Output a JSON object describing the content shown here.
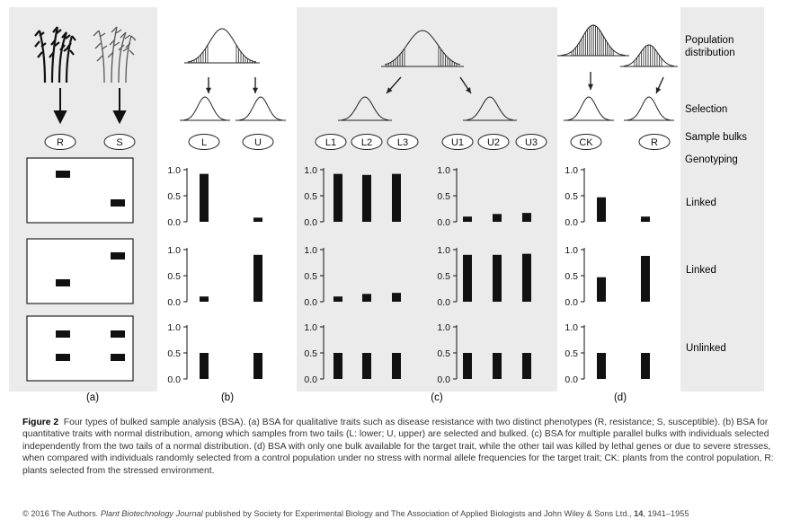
{
  "figure": {
    "panel_letters": [
      "(a)",
      "(b)",
      "(c)",
      "(d)"
    ],
    "right_labels": {
      "population": "Population",
      "distribution": "distribution",
      "selection": "Selection",
      "sample_bulks": "Sample bulks",
      "genotyping": "Genotyping"
    },
    "row_labels": [
      "Linked",
      "Linked",
      "Unlinked"
    ],
    "bulk_labels": {
      "a": [
        "R",
        "S"
      ],
      "b": [
        "L",
        "U"
      ],
      "c_low": [
        "L1",
        "L2",
        "L3"
      ],
      "c_up": [
        "U1",
        "U2",
        "U3"
      ],
      "d": [
        "CK",
        "R"
      ]
    },
    "y_ticks": [
      "1.0",
      "0.5",
      "0.0"
    ]
  },
  "chart_data": {
    "type": "bar",
    "description": "Allele frequency per bulk; rows = linked, linked, unlinked marker",
    "ylim": [
      0,
      1
    ],
    "panels": [
      {
        "panel": "b",
        "categories": [
          "L",
          "U"
        ],
        "rows": [
          [
            0.92,
            0.08
          ],
          [
            0.1,
            0.9
          ],
          [
            0.5,
            0.5
          ]
        ]
      },
      {
        "panel": "c-lower",
        "categories": [
          "L1",
          "L2",
          "L3"
        ],
        "rows": [
          [
            0.92,
            0.9,
            0.92
          ],
          [
            0.1,
            0.15,
            0.17
          ],
          [
            0.5,
            0.5,
            0.5
          ]
        ]
      },
      {
        "panel": "c-upper",
        "categories": [
          "U1",
          "U2",
          "U3"
        ],
        "rows": [
          [
            0.1,
            0.15,
            0.17
          ],
          [
            0.9,
            0.9,
            0.92
          ],
          [
            0.5,
            0.5,
            0.5
          ]
        ]
      },
      {
        "panel": "d",
        "categories": [
          "CK",
          "R"
        ],
        "rows": [
          [
            0.47,
            0.1
          ],
          [
            0.47,
            0.88
          ],
          [
            0.5,
            0.5
          ]
        ]
      }
    ]
  },
  "caption": {
    "label": "Figure 2",
    "text": "Four types of bulked sample analysis (BSA). (a) BSA for qualitative traits such as disease resistance with two distinct phenotypes (R, resistance; S, susceptible). (b) BSA for quantitative traits with normal distribution, among which samples from two tails (L: lower; U, upper) are selected and bulked. (c) BSA for multiple parallel bulks with individuals selected independently from the two tails of a normal distribution. (d) BSA with only one bulk available for the target trait, while the other tail was killed by lethal genes or due to severe stresses, when compared with individuals randomly selected from a control population under no stress with normal allele frequencies for the target trait; CK: plants from the control population, R: plants selected from the stressed environment."
  },
  "footer": {
    "prefix": "© 2016 The Authors.",
    "journal": "Plant Biotechnology Journal",
    "middle": "published by Society for Experimental Biology and The Association of Applied Biologists and John Wiley & Sons Ltd.,",
    "volume": "14",
    "pages": ", 1941–1955"
  }
}
